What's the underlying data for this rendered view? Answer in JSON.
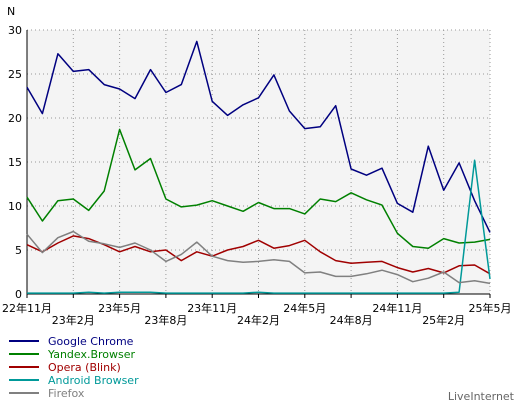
{
  "chart_data": {
    "type": "line",
    "ylabel": "N",
    "ylim": [
      0,
      30
    ],
    "yticks": [
      0,
      5,
      10,
      15,
      20,
      25,
      30
    ],
    "x_count": 31,
    "x_ticks": [
      {
        "index": 0,
        "label": "22年11月",
        "row": 1
      },
      {
        "index": 3,
        "label": "23年2月",
        "row": 2
      },
      {
        "index": 6,
        "label": "23年5月",
        "row": 1
      },
      {
        "index": 9,
        "label": "23年8月",
        "row": 2
      },
      {
        "index": 12,
        "label": "23年11月",
        "row": 1
      },
      {
        "index": 15,
        "label": "24年2月",
        "row": 2
      },
      {
        "index": 18,
        "label": "24年5月",
        "row": 1
      },
      {
        "index": 21,
        "label": "24年8月",
        "row": 2
      },
      {
        "index": 24,
        "label": "24年11月",
        "row": 1
      },
      {
        "index": 27,
        "label": "25年2月",
        "row": 2
      },
      {
        "index": 30,
        "label": "25年5月",
        "row": 1
      }
    ],
    "grid": true,
    "legend_position": "bottom-left",
    "series": [
      {
        "name": "Google Chrome",
        "color": "#000080",
        "values": [
          23.5,
          20.5,
          27.3,
          25.3,
          25.5,
          23.8,
          23.3,
          22.2,
          25.5,
          22.9,
          23.8,
          28.7,
          21.9,
          20.3,
          21.5,
          22.3,
          24.9,
          20.8,
          18.8,
          19.0,
          21.4,
          14.2,
          13.5,
          14.3,
          10.3,
          9.3,
          16.8,
          11.8,
          14.9,
          10.6,
          7.0
        ]
      },
      {
        "name": "Yandex.Browser",
        "color": "#008000",
        "values": [
          11.0,
          8.3,
          10.6,
          10.8,
          9.5,
          11.7,
          18.7,
          14.1,
          15.4,
          10.8,
          9.9,
          10.1,
          10.6,
          10.0,
          9.4,
          10.4,
          9.7,
          9.7,
          9.1,
          10.8,
          10.5,
          11.5,
          10.7,
          10.1,
          6.9,
          5.4,
          5.2,
          6.3,
          5.8,
          5.9,
          6.2
        ]
      },
      {
        "name": "Opera (Blink)",
        "color": "#a00000",
        "values": [
          5.6,
          4.8,
          5.8,
          6.6,
          6.3,
          5.6,
          4.8,
          5.4,
          4.8,
          5.0,
          3.8,
          4.8,
          4.3,
          5.0,
          5.4,
          6.1,
          5.2,
          5.5,
          6.1,
          4.8,
          3.8,
          3.5,
          3.6,
          3.7,
          3.0,
          2.5,
          2.9,
          2.4,
          3.2,
          3.3,
          2.3
        ]
      },
      {
        "name": "Android Browser",
        "color": "#009999",
        "values": [
          0.1,
          0.1,
          0.1,
          0.1,
          0.2,
          0.1,
          0.2,
          0.2,
          0.2,
          0.1,
          0.1,
          0.1,
          0.1,
          0.1,
          0.1,
          0.2,
          0.1,
          0.1,
          0.1,
          0.1,
          0.1,
          0.1,
          0.1,
          0.1,
          0.1,
          0.1,
          0.1,
          0.1,
          0.2,
          15.2,
          1.7
        ]
      },
      {
        "name": "Firefox",
        "color": "#808080",
        "values": [
          6.8,
          4.7,
          6.4,
          7.1,
          6.0,
          5.7,
          5.3,
          5.8,
          5.0,
          3.7,
          4.5,
          5.9,
          4.3,
          3.8,
          3.6,
          3.7,
          3.9,
          3.7,
          2.4,
          2.5,
          2.0,
          2.0,
          2.3,
          2.7,
          2.2,
          1.4,
          1.8,
          2.5,
          1.3,
          1.5,
          1.2
        ]
      }
    ]
  },
  "branding": "LiveInternet"
}
